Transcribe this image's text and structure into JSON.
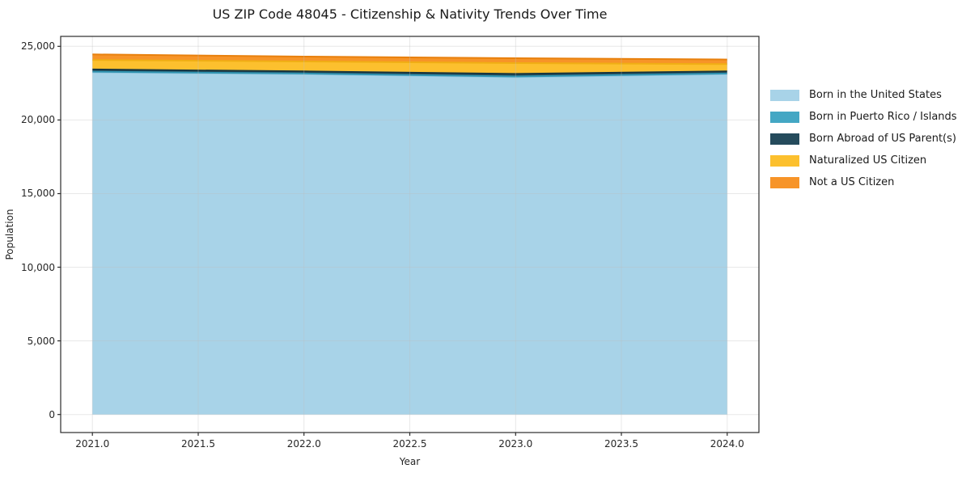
{
  "title": "US ZIP Code 48045 - Citizenship & Nativity Trends Over Time",
  "chart_data": {
    "type": "area",
    "stacked": true,
    "x": [
      2021,
      2022,
      2023,
      2024
    ],
    "series": [
      {
        "name": "Born in the United States",
        "color": "#a8d3e8",
        "edge": "#8cc3dc",
        "values": [
          23240,
          23115,
          22910,
          23115
        ]
      },
      {
        "name": "Born in Puerto Rico / Islands",
        "color": "#44a7c4",
        "edge": "#2f93b0",
        "values": [
          40,
          40,
          45,
          40
        ]
      },
      {
        "name": "Born Abroad of US Parent(s)",
        "color": "#254b5c",
        "edge": "#18363f",
        "values": [
          150,
          145,
          170,
          145
        ]
      },
      {
        "name": "Naturalized US Citizen",
        "color": "#fcc02e",
        "edge": "#f0ae14",
        "values": [
          640,
          675,
          740,
          490
        ]
      },
      {
        "name": "Not a US Citizen",
        "color": "#f79428",
        "edge": "#e8800d",
        "values": [
          380,
          325,
          330,
          315
        ]
      }
    ],
    "totals": [
      24450,
      24300,
      24195,
      24105
    ],
    "xlabel": "Year",
    "ylabel": "Population",
    "xlim": [
      2020.85,
      2024.15
    ],
    "ylim": [
      -1225,
      25675
    ],
    "x_ticks": [
      2021.0,
      2021.5,
      2022.0,
      2022.5,
      2023.0,
      2023.5,
      2024.0
    ],
    "x_tick_labels": [
      "2021.0",
      "2021.5",
      "2022.0",
      "2022.5",
      "2023.0",
      "2023.5",
      "2024.0"
    ],
    "y_ticks": [
      0,
      5000,
      10000,
      15000,
      20000,
      25000
    ],
    "y_tick_labels": [
      "0",
      "5,000",
      "10,000",
      "15,000",
      "20,000",
      "25,000"
    ],
    "grid": true,
    "legend_position": "right-outside",
    "colors": {
      "spine": "#2b2b2b",
      "grid": "#bebebe",
      "background": "#ffffff",
      "text": "#262626"
    }
  }
}
